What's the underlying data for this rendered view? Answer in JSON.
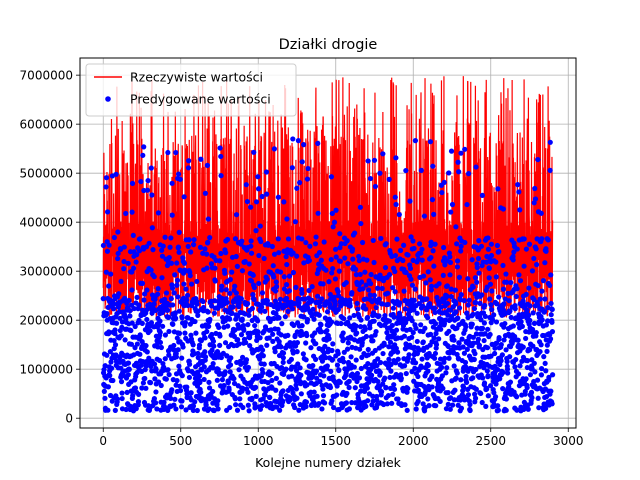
{
  "chart_data": {
    "type": "line",
    "title": "Działki drogie",
    "xlabel": "Kolejne numery działek",
    "ylabel": "",
    "xlim": [
      -150,
      3050
    ],
    "ylim": [
      -200000,
      7350000
    ],
    "xticks": [
      0,
      500,
      1000,
      1500,
      2000,
      2500,
      3000
    ],
    "yticks": [
      0,
      1000000,
      2000000,
      3000000,
      4000000,
      5000000,
      6000000,
      7000000
    ],
    "xtick_labels": [
      "0",
      "500",
      "1000",
      "1500",
      "2000",
      "2500",
      "3000"
    ],
    "ytick_labels": [
      "0",
      "1000000",
      "2000000",
      "3000000",
      "4000000",
      "5000000",
      "6000000",
      "7000000"
    ],
    "grid": true,
    "legend_position": "upper-left",
    "n_points": 2900,
    "series": [
      {
        "name": "Rzeczywiste wartości",
        "kind": "line",
        "color": "#ff0000",
        "summary": {
          "min": 2000000,
          "max": 7000000,
          "typical_range": [
            2100000,
            4500000
          ]
        }
      },
      {
        "name": "Predygowane wartości",
        "kind": "scatter",
        "color": "#0000ff",
        "summary": {
          "min": 150000,
          "max": 5700000,
          "typical_range": [
            300000,
            3500000
          ]
        }
      }
    ]
  }
}
